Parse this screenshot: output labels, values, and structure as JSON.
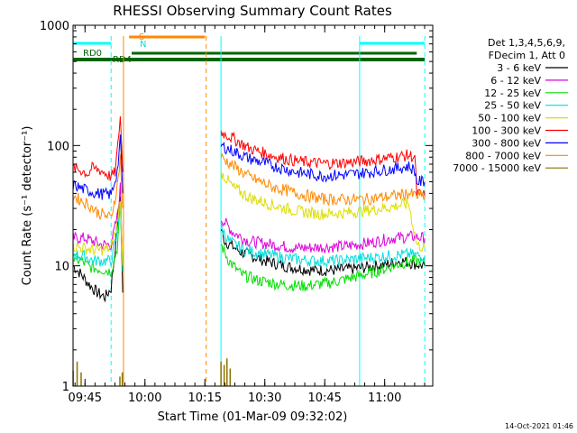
{
  "chart_data": {
    "type": "line",
    "title": "RHESSI Observing Summary Count Rates",
    "xlabel": "Start Time (01-Mar-09 09:32:02)",
    "ylabel": "Count Rate (s⁻¹ detector⁻¹)",
    "yscale": "log",
    "ylim": [
      1,
      1000
    ],
    "xlim_minutes": [
      9.97,
      100.0
    ],
    "x_ticks": [
      {
        "label": "09:45",
        "min": 12.97
      },
      {
        "label": "10:00",
        "min": 27.97
      },
      {
        "label": "10:15",
        "min": 42.97
      },
      {
        "label": "10:30",
        "min": 57.97
      },
      {
        "label": "10:45",
        "min": 72.97
      },
      {
        "label": "11:00",
        "min": 87.97
      }
    ],
    "y_ticks": [
      {
        "label": "1",
        "value": 1
      },
      {
        "label": "10",
        "value": 10
      },
      {
        "label": "100",
        "value": 100
      },
      {
        "label": "1000",
        "value": 1000
      }
    ],
    "legend_header": [
      "Det 1,3,4,5,6,9,",
      "FDecim 1, Att 0"
    ],
    "legend_position": "right",
    "series": [
      {
        "name": "3 - 6 keV",
        "color": "#000000",
        "values": [
          [
            10,
            10
          ],
          [
            12,
            8.5
          ],
          [
            14,
            7
          ],
          [
            16,
            6
          ],
          [
            18,
            5.5
          ],
          [
            19.5,
            6.5
          ],
          [
            21,
            20
          ],
          [
            21.8,
            40
          ],
          [
            22.4,
            6
          ],
          [
            47,
            20
          ],
          [
            48,
            16
          ],
          [
            52,
            13
          ],
          [
            58,
            11
          ],
          [
            64,
            9.8
          ],
          [
            70,
            9.2
          ],
          [
            76,
            9.2
          ],
          [
            82,
            9.6
          ],
          [
            88,
            10.2
          ],
          [
            92,
            11
          ],
          [
            96,
            10.3
          ],
          [
            98,
            10
          ]
        ]
      },
      {
        "name": "6 - 12 keV",
        "color": "#dd00dd",
        "values": [
          [
            10,
            17
          ],
          [
            13,
            17
          ],
          [
            15,
            16
          ],
          [
            17,
            15
          ],
          [
            19.5,
            15
          ],
          [
            21,
            25
          ],
          [
            21.8,
            45
          ],
          [
            22.4,
            10
          ],
          [
            47,
            25
          ],
          [
            50,
            19
          ],
          [
            54,
            16
          ],
          [
            60,
            15
          ],
          [
            66,
            14
          ],
          [
            72,
            14.3
          ],
          [
            78,
            14.5
          ],
          [
            84,
            15.5
          ],
          [
            90,
            17
          ],
          [
            95,
            17.5
          ],
          [
            98,
            17
          ]
        ]
      },
      {
        "name": "12 - 25 keV",
        "color": "#00dd00",
        "values": [
          [
            10,
            11.5
          ],
          [
            12,
            11
          ],
          [
            14,
            9.8
          ],
          [
            16,
            9.5
          ],
          [
            19.5,
            9
          ],
          [
            21,
            14
          ],
          [
            21.8,
            30
          ],
          [
            22.4,
            9
          ],
          [
            47,
            15
          ],
          [
            49,
            11
          ],
          [
            52,
            8.5
          ],
          [
            56,
            7.6
          ],
          [
            62,
            7
          ],
          [
            68,
            6.8
          ],
          [
            74,
            7.2
          ],
          [
            80,
            8
          ],
          [
            86,
            9
          ],
          [
            92,
            10.5
          ],
          [
            96,
            11
          ],
          [
            98,
            10.5
          ]
        ]
      },
      {
        "name": "25 - 50 keV",
        "color": "#00dddd",
        "values": [
          [
            10,
            12.5
          ],
          [
            13,
            12
          ],
          [
            15,
            11
          ],
          [
            17,
            11
          ],
          [
            19.5,
            11
          ],
          [
            21,
            18
          ],
          [
            21.8,
            35
          ],
          [
            22.4,
            9
          ],
          [
            47,
            21
          ],
          [
            49,
            16
          ],
          [
            53,
            13.5
          ],
          [
            58,
            12.5
          ],
          [
            64,
            11.5
          ],
          [
            70,
            11
          ],
          [
            76,
            11
          ],
          [
            82,
            11.5
          ],
          [
            88,
            12
          ],
          [
            94,
            12.5
          ],
          [
            98,
            12
          ]
        ]
      },
      {
        "name": "50 - 100 keV",
        "color": "#dddd00",
        "values": [
          [
            10,
            14.5
          ],
          [
            13,
            14
          ],
          [
            15,
            13.5
          ],
          [
            17,
            13.5
          ],
          [
            19.5,
            14
          ],
          [
            21,
            22
          ],
          [
            21.8,
            38
          ],
          [
            22.4,
            10
          ],
          [
            47,
            60
          ],
          [
            50,
            45
          ],
          [
            54,
            37
          ],
          [
            60,
            32
          ],
          [
            66,
            28.5
          ],
          [
            72,
            27
          ],
          [
            78,
            27.5
          ],
          [
            84,
            29
          ],
          [
            90,
            31
          ],
          [
            94,
            33
          ],
          [
            96,
            15
          ],
          [
            98,
            14
          ]
        ]
      },
      {
        "name": "100 - 300 keV",
        "color": "#ff0000",
        "values": [
          [
            10,
            65
          ],
          [
            12,
            62
          ],
          [
            13,
            60
          ],
          [
            14,
            58
          ],
          [
            14.5,
            65
          ],
          [
            17,
            62
          ],
          [
            19.5,
            55
          ],
          [
            20.5,
            60
          ],
          [
            21.2,
            100
          ],
          [
            21.8,
            180
          ],
          [
            22.4,
            60
          ],
          [
            47,
            130
          ],
          [
            50,
            115
          ],
          [
            54,
            95
          ],
          [
            60,
            82
          ],
          [
            66,
            74
          ],
          [
            72,
            71
          ],
          [
            78,
            72
          ],
          [
            84,
            75
          ],
          [
            90,
            80
          ],
          [
            94,
            83
          ],
          [
            95.5,
            80
          ],
          [
            96,
            40
          ],
          [
            98,
            38
          ]
        ]
      },
      {
        "name": "300 - 800 keV",
        "color": "#0000ff",
        "values": [
          [
            10,
            47
          ],
          [
            12,
            44
          ],
          [
            14,
            42
          ],
          [
            16,
            40
          ],
          [
            19.5,
            39
          ],
          [
            21,
            60
          ],
          [
            21.8,
            110
          ],
          [
            22.4,
            40
          ],
          [
            47,
            100
          ],
          [
            50,
            90
          ],
          [
            54,
            78
          ],
          [
            60,
            68
          ],
          [
            66,
            60
          ],
          [
            72,
            56
          ],
          [
            78,
            57
          ],
          [
            84,
            60
          ],
          [
            90,
            64
          ],
          [
            94,
            67
          ],
          [
            95.5,
            62
          ],
          [
            96,
            50
          ],
          [
            98,
            50
          ]
        ]
      },
      {
        "name": "800 - 7000 keV",
        "color": "#ff8800",
        "values": [
          [
            10,
            38
          ],
          [
            12,
            35
          ],
          [
            14,
            32
          ],
          [
            16,
            28
          ],
          [
            19.5,
            25
          ],
          [
            21,
            45
          ],
          [
            21.8,
            80
          ],
          [
            22.4,
            30
          ],
          [
            47,
            80
          ],
          [
            50,
            68
          ],
          [
            54,
            55
          ],
          [
            60,
            45
          ],
          [
            66,
            40
          ],
          [
            72,
            36
          ],
          [
            78,
            35.5
          ],
          [
            84,
            36
          ],
          [
            90,
            38
          ],
          [
            94,
            40
          ],
          [
            96,
            38
          ],
          [
            98,
            38
          ]
        ]
      },
      {
        "name": "7000 - 15000 keV",
        "color": "#8b7300",
        "values": [
          [
            10,
            1.35
          ],
          [
            11,
            1.6
          ],
          [
            12,
            1.3
          ],
          [
            21.7,
            1.2
          ],
          [
            22.3,
            1.3
          ],
          [
            47,
            1.6
          ],
          [
            47.8,
            1.5
          ],
          [
            48.5,
            1.7
          ],
          [
            49.3,
            1.4
          ]
        ]
      }
    ],
    "state_bars": [
      {
        "name": "S",
        "color": "#ff8800",
        "start_min": 24,
        "end_min": 43
      },
      {
        "name": "N",
        "color": "#00dddd",
        "label_only": true
      },
      {
        "name": "RD0",
        "color": "#00ffff",
        "start_min": 10,
        "end_min": 19.5
      },
      {
        "name": "RD4",
        "color": "#006600",
        "start_min": 10,
        "end_min": 96
      }
    ],
    "vertical_markers": [
      {
        "min": 10.0,
        "color": "#00ffff",
        "style": "solid"
      },
      {
        "min": 19.5,
        "color": "#00ffff",
        "style": "dashed"
      },
      {
        "min": 22.6,
        "color": "#ff8800",
        "style": "solid"
      },
      {
        "min": 43.3,
        "color": "#ff8800",
        "style": "dashed"
      },
      {
        "min": 47.0,
        "color": "#00ffff",
        "style": "solid"
      },
      {
        "min": 81.7,
        "color": "#00ffff",
        "style": "solid"
      },
      {
        "min": 98.0,
        "color": "#00ffff",
        "style": "dashed"
      }
    ]
  },
  "footer": {
    "date_stamp": "14-Oct-2021 01:46"
  }
}
